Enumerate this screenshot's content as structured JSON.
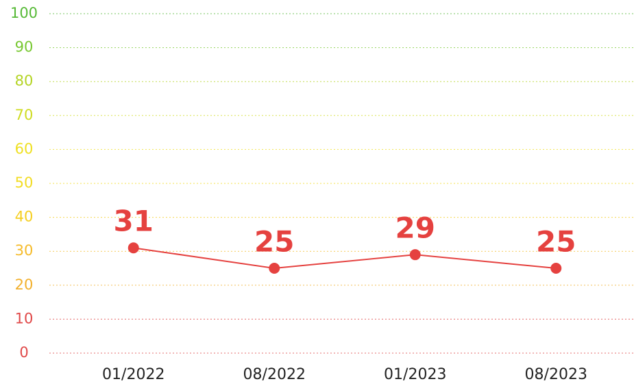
{
  "chart_data": {
    "type": "line",
    "categories": [
      "01/2022",
      "08/2022",
      "01/2023",
      "08/2023"
    ],
    "series": [
      {
        "color": "#e5413f",
        "values": [
          31,
          25,
          29,
          25
        ]
      }
    ],
    "ylim": [
      0,
      100
    ],
    "yticks": [
      0,
      10,
      20,
      30,
      40,
      50,
      60,
      70,
      80,
      90,
      100
    ],
    "ytick_colors": [
      "#e04848",
      "#e04848",
      "#f2b02c",
      "#f5bb2a",
      "#f5cf22",
      "#f2dc22",
      "#efe022",
      "#cfdc22",
      "#b4d424",
      "#78c832",
      "#55b935"
    ],
    "grid": true
  }
}
